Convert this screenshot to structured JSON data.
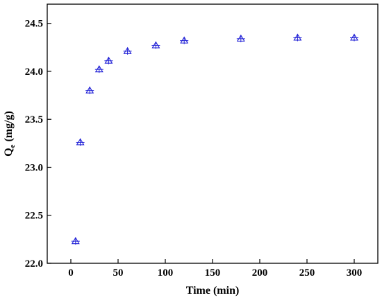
{
  "chart_data": {
    "type": "scatter",
    "title": "",
    "xlabel": "Time (min)",
    "ylabel_main": "Q",
    "ylabel_sub": "e",
    "ylabel_unit": " (mg/g)",
    "xlim": [
      -25,
      325
    ],
    "ylim": [
      22.0,
      24.7
    ],
    "xticks": [
      0,
      50,
      100,
      150,
      200,
      250,
      300
    ],
    "yticks": [
      22.0,
      22.5,
      23.0,
      23.5,
      24.0,
      24.5
    ],
    "ytick_labels": [
      "22.0",
      "22.5",
      "23.0",
      "23.5",
      "24.0",
      "24.5"
    ],
    "grid": false,
    "legend": "none",
    "marker": "open-triangle-with-cross",
    "series": [
      {
        "color": "#1f1fd6",
        "x": [
          5,
          10,
          20,
          30,
          40,
          60,
          90,
          120,
          180,
          240,
          300
        ],
        "y": [
          22.23,
          23.26,
          23.8,
          24.02,
          24.11,
          24.21,
          24.27,
          24.32,
          24.34,
          24.35,
          24.35
        ]
      }
    ]
  }
}
